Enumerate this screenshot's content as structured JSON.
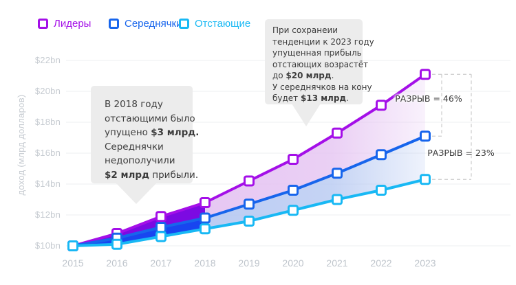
{
  "legend": {
    "items": [
      {
        "label": "Лидеры",
        "color": "#A40FE8"
      },
      {
        "label": "Середнячки",
        "color": "#1765EC"
      },
      {
        "label": "Отстающие",
        "color": "#18B8F4"
      }
    ]
  },
  "annotations": {
    "left_box": {
      "lines": [
        [
          {
            "t": "В 2018 году"
          }
        ],
        [
          {
            "t": "отстающими было"
          }
        ],
        [
          {
            "t": "упущено "
          },
          {
            "t": "$3 млрд.",
            "b": true
          }
        ],
        [
          {
            "t": "Середнячки"
          }
        ],
        [
          {
            "t": "недополучили"
          }
        ],
        [
          {
            "t": "$2 млрд",
            "b": true
          },
          {
            "t": " прибыли."
          }
        ]
      ]
    },
    "right_box": {
      "lines": [
        [
          {
            "t": "При сохранеии"
          }
        ],
        [
          {
            "t": "тенденции к 2023 году"
          }
        ],
        [
          {
            "t": "упущенная прибыль"
          }
        ],
        [
          {
            "t": "отстающих возрастёт"
          }
        ],
        [
          {
            "t": "до "
          },
          {
            "t": "$20 млрд",
            "b": true
          },
          {
            "t": "."
          }
        ],
        [
          {
            "t": "У середнячков на кону"
          }
        ],
        [
          {
            "t": "будет "
          },
          {
            "t": "$13 млрд",
            "b": true
          },
          {
            "t": "."
          }
        ]
      ]
    }
  },
  "chart_data": {
    "type": "line",
    "title": "",
    "ylabel": "доход (млрд долларов)",
    "xlabel": "",
    "x_labels": [
      "2015",
      "2016",
      "2017",
      "2018",
      "2019",
      "2020",
      "2021",
      "2022",
      "2023"
    ],
    "yticks": [
      {
        "label": "$10bn",
        "value": 10
      },
      {
        "label": "$12bn",
        "value": 12
      },
      {
        "label": "$14bn",
        "value": 14
      },
      {
        "label": "$16bn",
        "value": 16
      },
      {
        "label": "$18bn",
        "value": 18
      },
      {
        "label": "$20bn",
        "value": 20
      },
      {
        "label": "$22bn",
        "value": 22
      }
    ],
    "ylim": [
      10,
      22.5
    ],
    "grid": "horizontal",
    "legend_position": "top-left",
    "series": [
      {
        "name": "Лидеры",
        "color": "#A40FE8",
        "values": [
          10,
          10.8,
          11.9,
          12.8,
          14.2,
          15.6,
          17.3,
          19.1,
          21.1
        ]
      },
      {
        "name": "Середнячки",
        "color": "#1765EC",
        "values": [
          10,
          10.5,
          11.2,
          11.8,
          12.7,
          13.6,
          14.7,
          15.9,
          17.1
        ]
      },
      {
        "name": "Отстающие",
        "color": "#18B8F4",
        "values": [
          10,
          10.1,
          10.6,
          11.1,
          11.6,
          12.3,
          13.0,
          13.6,
          14.3
        ]
      }
    ],
    "band_fills": {
      "solid_until_year": "2018",
      "upper_solid": "#7C0AE2",
      "lower_solid": "#1845F0",
      "upper_light": "#E5C4F2",
      "lower_light": "#B7C9F2"
    },
    "gap_annotations": [
      "РАЗРЫВ = 46%",
      "РАЗРЫВ = 23%"
    ]
  }
}
